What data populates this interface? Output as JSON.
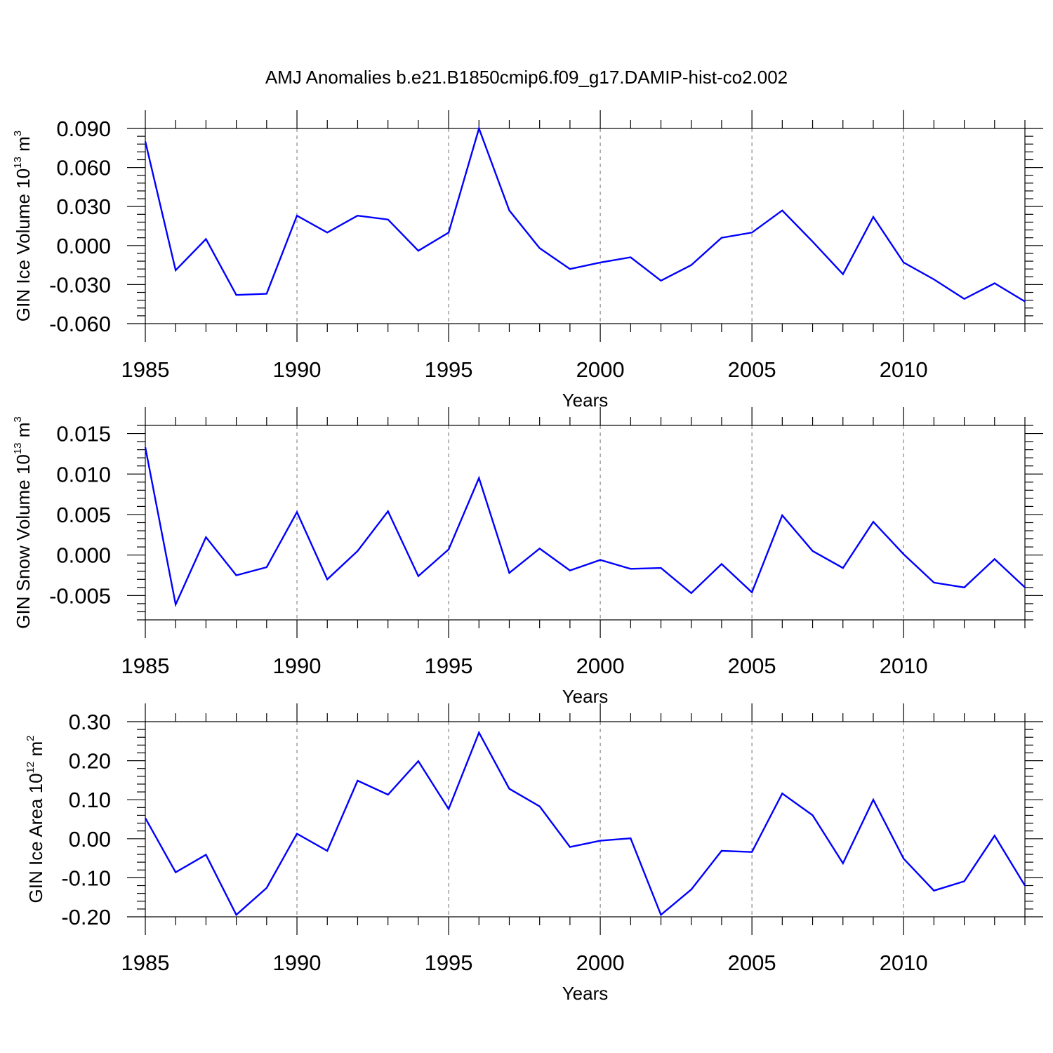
{
  "title": "AMJ Anomalies b.e21.B1850cmip6.f09_g17.DAMIP-hist-co2.002",
  "series_color": "#0000ff",
  "chart_data": [
    {
      "type": "line",
      "title": "AMJ Anomalies b.e21.B1850cmip6.f09_g17.DAMIP-hist-co2.002",
      "xlabel": "Years",
      "ylabel_main": "GIN Ice Volume 10",
      "ylabel_exp": "13",
      "ylabel_unit": " m",
      "ylabel_unit_exp": "3",
      "xlim": [
        1985,
        2014
      ],
      "ylim": [
        -0.06,
        0.09
      ],
      "xticks": [
        1985,
        1990,
        1995,
        2000,
        2005,
        2010
      ],
      "xtick_labels": [
        "1985",
        "1990",
        "1995",
        "2000",
        "2005",
        "2010"
      ],
      "yticks": [
        -0.06,
        -0.03,
        0.0,
        0.03,
        0.06,
        0.09
      ],
      "ytick_labels": [
        "-0.060",
        "-0.030",
        "0.000",
        "0.030",
        "0.060",
        "0.090"
      ],
      "grid": "vertical dashed at labeled years",
      "x": [
        1985,
        1986,
        1987,
        1988,
        1989,
        1990,
        1991,
        1992,
        1993,
        1994,
        1995,
        1996,
        1997,
        1998,
        1999,
        2000,
        2001,
        2002,
        2003,
        2004,
        2005,
        2006,
        2007,
        2008,
        2009,
        2010,
        2011,
        2012,
        2013,
        2014
      ],
      "values": [
        0.08,
        -0.019,
        0.005,
        -0.038,
        -0.037,
        0.023,
        0.01,
        0.023,
        0.02,
        -0.004,
        0.01,
        0.09,
        0.027,
        -0.002,
        -0.018,
        -0.013,
        -0.009,
        -0.027,
        -0.015,
        0.006,
        0.01,
        0.027,
        0.003,
        -0.022,
        0.022,
        -0.013,
        -0.026,
        -0.041,
        -0.029,
        -0.043
      ]
    },
    {
      "type": "line",
      "xlabel": "Years",
      "ylabel_main": "GIN Snow Volume 10",
      "ylabel_exp": "13",
      "ylabel_unit": " m",
      "ylabel_unit_exp": "3",
      "xlim": [
        1985,
        2014
      ],
      "ylim": [
        -0.008,
        0.016
      ],
      "xticks": [
        1985,
        1990,
        1995,
        2000,
        2005,
        2010
      ],
      "xtick_labels": [
        "1985",
        "1990",
        "1995",
        "2000",
        "2005",
        "2010"
      ],
      "yticks": [
        -0.005,
        0.0,
        0.005,
        0.01,
        0.015
      ],
      "ytick_labels": [
        "-0.005",
        "0.000",
        "0.005",
        "0.010",
        "0.015"
      ],
      "grid": "vertical dashed at labeled years",
      "x": [
        1985,
        1986,
        1987,
        1988,
        1989,
        1990,
        1991,
        1992,
        1993,
        1994,
        1995,
        1996,
        1997,
        1998,
        1999,
        2000,
        2001,
        2002,
        2003,
        2004,
        2005,
        2006,
        2007,
        2008,
        2009,
        2010,
        2011,
        2012,
        2013,
        2014
      ],
      "values": [
        0.0133,
        -0.0061,
        0.0022,
        -0.0025,
        -0.0015,
        0.0053,
        -0.003,
        0.0005,
        0.0054,
        -0.0026,
        0.0007,
        0.0095,
        -0.0022,
        0.0008,
        -0.0019,
        -0.0006,
        -0.0017,
        -0.0016,
        -0.0047,
        -0.0011,
        -0.0046,
        0.0049,
        0.0005,
        -0.0016,
        0.0041,
        0.0001,
        -0.0034,
        -0.004,
        -0.0005,
        -0.004
      ]
    },
    {
      "type": "line",
      "xlabel": "Years",
      "ylabel_main": "GIN Ice Area 10",
      "ylabel_exp": "12",
      "ylabel_unit": " m",
      "ylabel_unit_exp": "2",
      "xlim": [
        1985,
        2014
      ],
      "ylim": [
        -0.2,
        0.3
      ],
      "xticks": [
        1985,
        1990,
        1995,
        2000,
        2005,
        2010
      ],
      "xtick_labels": [
        "1985",
        "1990",
        "1995",
        "2000",
        "2005",
        "2010"
      ],
      "yticks": [
        -0.2,
        -0.1,
        0.0,
        0.1,
        0.2,
        0.3
      ],
      "ytick_labels": [
        "-0.20",
        "-0.10",
        "0.00",
        "0.10",
        "0.20",
        "0.30"
      ],
      "grid": "vertical dashed at labeled years",
      "x": [
        1985,
        1986,
        1987,
        1988,
        1989,
        1990,
        1991,
        1992,
        1993,
        1994,
        1995,
        1996,
        1997,
        1998,
        1999,
        2000,
        2001,
        2002,
        2003,
        2004,
        2005,
        2006,
        2007,
        2008,
        2009,
        2010,
        2011,
        2012,
        2013,
        2014
      ],
      "values": [
        0.053,
        -0.086,
        -0.041,
        -0.195,
        -0.126,
        0.013,
        -0.031,
        0.149,
        0.113,
        0.199,
        0.076,
        0.272,
        0.128,
        0.083,
        -0.021,
        -0.005,
        0.001,
        -0.195,
        -0.13,
        -0.031,
        -0.034,
        0.116,
        0.06,
        -0.063,
        0.1,
        -0.051,
        -0.133,
        -0.109,
        0.008,
        -0.12
      ]
    }
  ]
}
